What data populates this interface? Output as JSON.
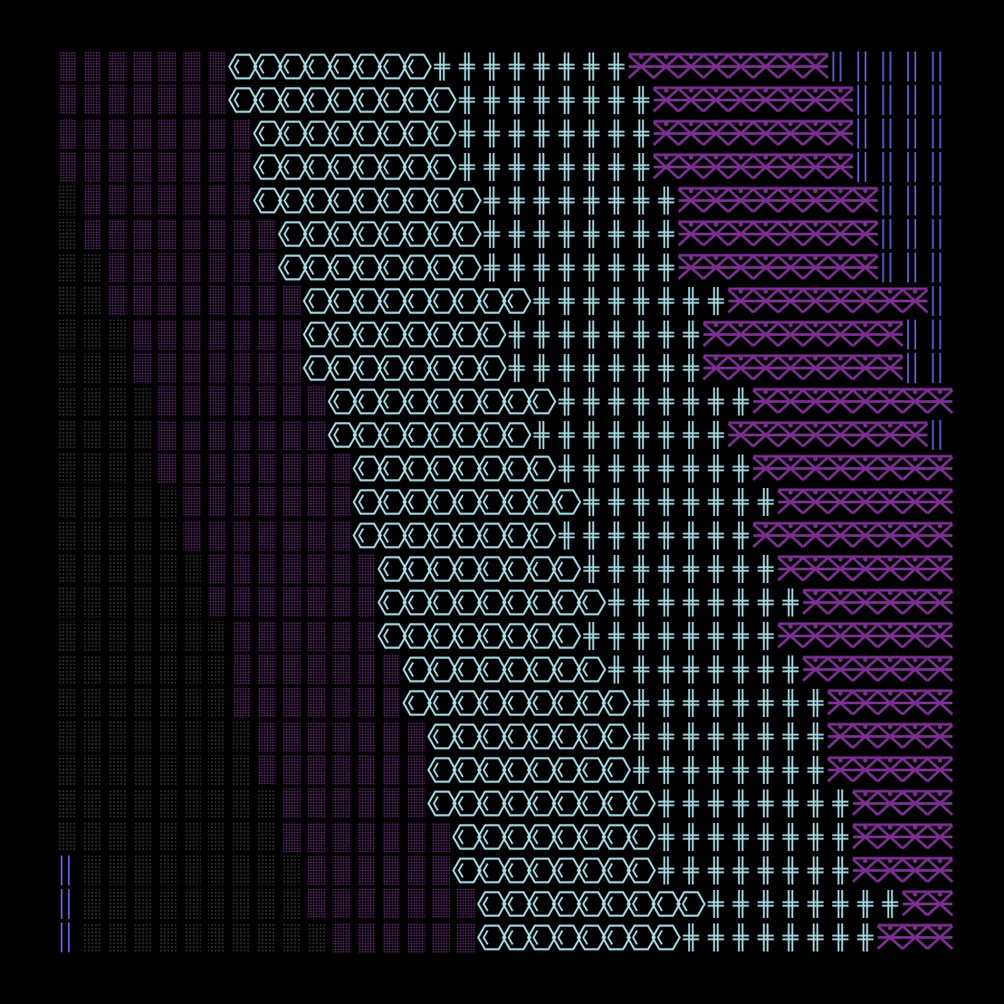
{
  "palette": {
    "background": "#000000",
    "dots": "#7a2f8f",
    "sparse": "#6a6a6a",
    "hex": "#a9dce6",
    "cross": "#a9dce6",
    "weave": "#7a2f8f",
    "lines": "#5b5bd0"
  }
}
